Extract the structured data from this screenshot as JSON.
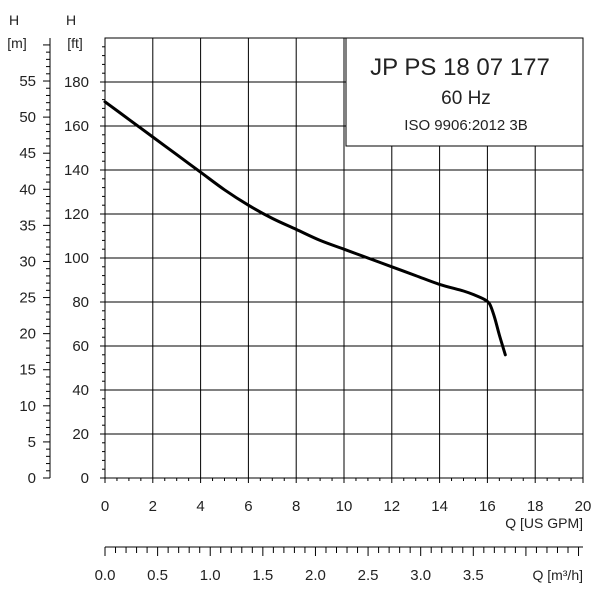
{
  "chart_data": {
    "type": "line",
    "title": "JP PS 18 07 177",
    "subtitle": "60 Hz",
    "standard": "ISO 9906:2012 3B",
    "x_axis": {
      "label": "Q [US GPM]",
      "range": [
        0,
        20
      ],
      "ticks": [
        0,
        2,
        4,
        6,
        8,
        10,
        12,
        14,
        16,
        18,
        20
      ]
    },
    "x2_axis": {
      "label": "Q [m³/h]",
      "range": [
        0,
        4.5425
      ],
      "ticks": [
        "0.0",
        "0.5",
        "1.0",
        "1.5",
        "2.0",
        "2.5",
        "3.0",
        "3.5"
      ]
    },
    "y_axis": {
      "label_symbol": "H",
      "label_unit": "[ft]",
      "range": [
        0,
        200
      ],
      "ticks": [
        0,
        20,
        40,
        60,
        80,
        100,
        120,
        140,
        160,
        180
      ]
    },
    "y2_axis": {
      "label_symbol": "H",
      "label_unit": "[m]",
      "range": [
        0,
        60.96
      ],
      "ticks": [
        0,
        5,
        10,
        15,
        20,
        25,
        30,
        35,
        40,
        45,
        50,
        55
      ]
    },
    "grid": true,
    "series": [
      {
        "x": [
          0,
          1,
          2,
          3,
          4,
          5,
          6,
          7,
          8,
          9,
          10,
          11,
          12,
          13,
          14,
          15,
          15.5,
          15.9,
          16.1,
          16.3,
          16.5,
          16.75
        ],
        "y": [
          171,
          163,
          155,
          147,
          139,
          131,
          124,
          118,
          113,
          108,
          104,
          100,
          96,
          92,
          88,
          85,
          83,
          81,
          79,
          73,
          65,
          56
        ],
        "color": "#000000"
      }
    ]
  }
}
